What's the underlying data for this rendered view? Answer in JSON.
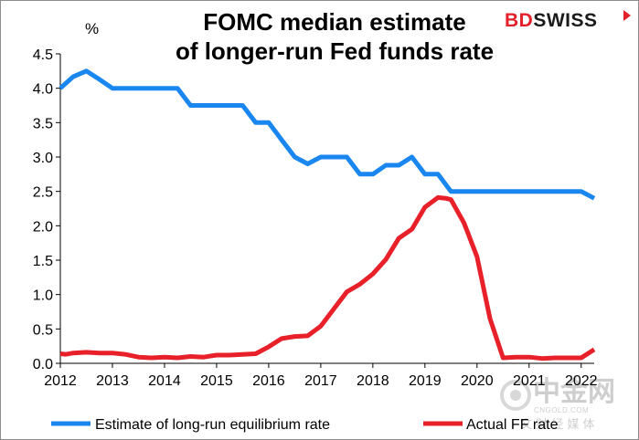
{
  "logo": {
    "part1": "BD",
    "part2": "SWISS"
  },
  "watermark": {
    "chinese": "中金网",
    "domain": "CNGOLD.COM",
    "tagline": "文 财 经 媒 体"
  },
  "colors": {
    "series1": "#1a86f0",
    "series2": "#e8202a",
    "axis": "#000000"
  },
  "chart_data": {
    "type": "line",
    "title": [
      "FOMC median estimate",
      "of longer-run Fed funds rate"
    ],
    "unit": "%",
    "xlabel": "",
    "ylabel": "",
    "xlim": [
      2012,
      2022.25
    ],
    "ylim": [
      0,
      4.5
    ],
    "x_ticks": [
      "2012",
      "2013",
      "2014",
      "2015",
      "2016",
      "2017",
      "2018",
      "2019",
      "2020",
      "2021",
      "2022"
    ],
    "y_ticks": [
      "0.0",
      "0.5",
      "1.0",
      "1.5",
      "2.0",
      "2.5",
      "3.0",
      "3.5",
      "4.0",
      "4.5"
    ],
    "grid": false,
    "legend_position": "bottom",
    "series": [
      {
        "name": "Estimate of long-run equilibrium rate",
        "color": "#1a86f0",
        "points": [
          [
            2012.0,
            4.0
          ],
          [
            2012.25,
            4.17
          ],
          [
            2012.5,
            4.25
          ],
          [
            2012.75,
            4.13
          ],
          [
            2013.0,
            4.0
          ],
          [
            2013.25,
            4.0
          ],
          [
            2013.5,
            4.0
          ],
          [
            2013.75,
            4.0
          ],
          [
            2014.0,
            4.0
          ],
          [
            2014.25,
            4.0
          ],
          [
            2014.5,
            3.75
          ],
          [
            2014.75,
            3.75
          ],
          [
            2015.0,
            3.75
          ],
          [
            2015.25,
            3.75
          ],
          [
            2015.5,
            3.75
          ],
          [
            2015.75,
            3.5
          ],
          [
            2016.0,
            3.5
          ],
          [
            2016.25,
            3.25
          ],
          [
            2016.5,
            3.0
          ],
          [
            2016.75,
            2.9
          ],
          [
            2017.0,
            3.0
          ],
          [
            2017.25,
            3.0
          ],
          [
            2017.5,
            3.0
          ],
          [
            2017.75,
            2.75
          ],
          [
            2018.0,
            2.75
          ],
          [
            2018.25,
            2.88
          ],
          [
            2018.5,
            2.88
          ],
          [
            2018.75,
            3.0
          ],
          [
            2019.0,
            2.75
          ],
          [
            2019.25,
            2.75
          ],
          [
            2019.5,
            2.5
          ],
          [
            2019.75,
            2.5
          ],
          [
            2020.0,
            2.5
          ],
          [
            2020.25,
            2.5
          ],
          [
            2020.5,
            2.5
          ],
          [
            2020.75,
            2.5
          ],
          [
            2021.0,
            2.5
          ],
          [
            2021.25,
            2.5
          ],
          [
            2021.5,
            2.5
          ],
          [
            2021.75,
            2.5
          ],
          [
            2022.0,
            2.5
          ],
          [
            2022.25,
            2.4
          ]
        ]
      },
      {
        "name": "Actual FF rate",
        "color": "#e8202a",
        "points": [
          [
            2012.0,
            0.14
          ],
          [
            2012.1,
            0.13
          ],
          [
            2012.25,
            0.15
          ],
          [
            2012.5,
            0.16
          ],
          [
            2012.75,
            0.15
          ],
          [
            2013.0,
            0.15
          ],
          [
            2013.25,
            0.13
          ],
          [
            2013.5,
            0.09
          ],
          [
            2013.75,
            0.08
          ],
          [
            2014.0,
            0.09
          ],
          [
            2014.25,
            0.08
          ],
          [
            2014.5,
            0.1
          ],
          [
            2014.75,
            0.09
          ],
          [
            2015.0,
            0.12
          ],
          [
            2015.25,
            0.12
          ],
          [
            2015.5,
            0.13
          ],
          [
            2015.75,
            0.14
          ],
          [
            2016.0,
            0.24
          ],
          [
            2016.25,
            0.36
          ],
          [
            2016.5,
            0.39
          ],
          [
            2016.75,
            0.4
          ],
          [
            2017.0,
            0.54
          ],
          [
            2017.25,
            0.79
          ],
          [
            2017.5,
            1.04
          ],
          [
            2017.75,
            1.15
          ],
          [
            2018.0,
            1.3
          ],
          [
            2018.25,
            1.51
          ],
          [
            2018.5,
            1.82
          ],
          [
            2018.75,
            1.95
          ],
          [
            2019.0,
            2.27
          ],
          [
            2019.25,
            2.41
          ],
          [
            2019.4,
            2.4
          ],
          [
            2019.5,
            2.38
          ],
          [
            2019.75,
            2.04
          ],
          [
            2020.0,
            1.55
          ],
          [
            2020.25,
            0.65
          ],
          [
            2020.5,
            0.08
          ],
          [
            2020.75,
            0.09
          ],
          [
            2021.0,
            0.09
          ],
          [
            2021.25,
            0.07
          ],
          [
            2021.5,
            0.08
          ],
          [
            2021.75,
            0.08
          ],
          [
            2022.0,
            0.08
          ],
          [
            2022.25,
            0.2
          ]
        ]
      }
    ]
  }
}
